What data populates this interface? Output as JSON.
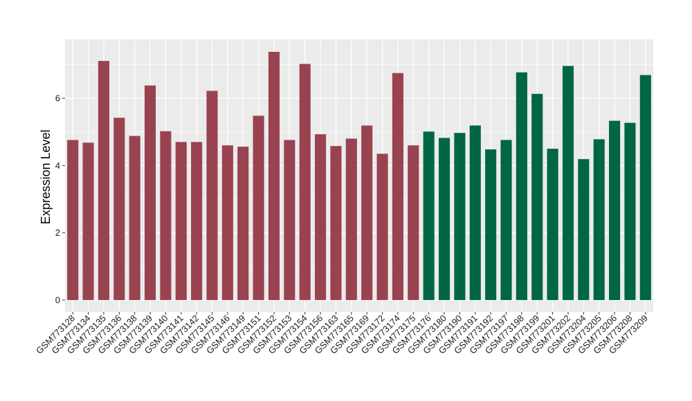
{
  "chart_data": {
    "type": "bar",
    "title": "",
    "xlabel": "",
    "ylabel": "Expression Level",
    "ylim": [
      -0.35,
      7.75
    ],
    "yticks": [
      0,
      2,
      4,
      6
    ],
    "grid": true,
    "legend": "none",
    "colors": {
      "group1": "#9A4350",
      "group2": "#006644",
      "panel": "#EBEBEB",
      "grid": "#FFFFFF"
    },
    "categories": [
      "GSM773128",
      "GSM773134",
      "GSM773135",
      "GSM773136",
      "GSM773138",
      "GSM773139",
      "GSM773140",
      "GSM773141",
      "GSM773142",
      "GSM773145",
      "GSM773146",
      "GSM773149",
      "GSM773151",
      "GSM773152",
      "GSM773153",
      "GSM773154",
      "GSM773156",
      "GSM773163",
      "GSM773165",
      "GSM773169",
      "GSM773172",
      "GSM773174",
      "GSM773175",
      "GSM773176",
      "GSM773180",
      "GSM773190",
      "GSM773191",
      "GSM773192",
      "GSM773197",
      "GSM773198",
      "GSM773199",
      "GSM773201",
      "GSM773202",
      "GSM773204",
      "GSM773205",
      "GSM773206",
      "GSM773208",
      "GSM773209"
    ],
    "values": [
      4.76,
      4.68,
      7.11,
      5.42,
      4.88,
      6.38,
      5.02,
      4.7,
      4.7,
      6.22,
      4.6,
      4.56,
      5.48,
      7.38,
      4.76,
      7.02,
      4.93,
      4.58,
      4.8,
      5.19,
      4.35,
      6.75,
      4.6,
      5.01,
      4.82,
      4.97,
      5.19,
      4.48,
      4.76,
      6.77,
      6.13,
      4.5,
      6.96,
      4.19,
      4.78,
      5.33,
      5.27,
      6.69
    ],
    "groups": [
      1,
      1,
      1,
      1,
      1,
      1,
      1,
      1,
      1,
      1,
      1,
      1,
      1,
      1,
      1,
      1,
      1,
      1,
      1,
      1,
      1,
      1,
      1,
      2,
      2,
      2,
      2,
      2,
      2,
      2,
      2,
      2,
      2,
      2,
      2,
      2,
      2,
      2
    ]
  }
}
